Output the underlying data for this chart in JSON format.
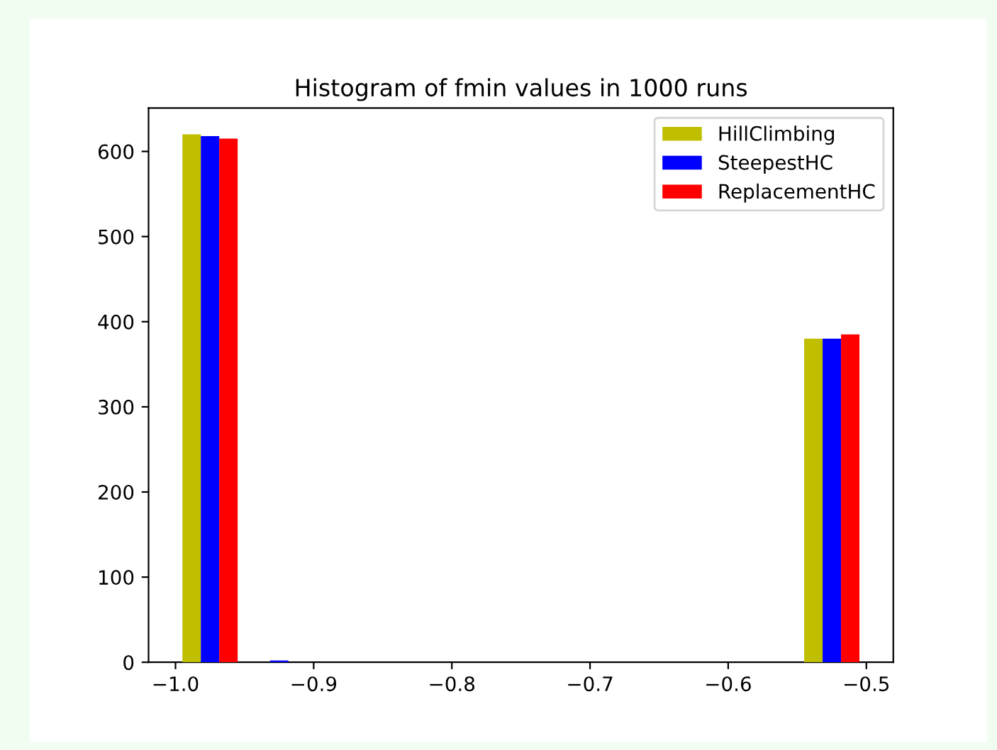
{
  "chart_data": {
    "type": "histogram",
    "title": "Histogram of fmin values in 1000 runs",
    "bins": [
      -1.0,
      -0.95,
      -0.9,
      -0.85,
      -0.8,
      -0.75,
      -0.7,
      -0.65,
      -0.6,
      -0.55,
      -0.5
    ],
    "series": [
      {
        "name": "HillClimbing",
        "color": "#bfbf00",
        "values": [
          620,
          0,
          0,
          0,
          0,
          0,
          0,
          0,
          0,
          380
        ]
      },
      {
        "name": "SteepestHC",
        "color": "#0000ff",
        "values": [
          618,
          2,
          0,
          0,
          0,
          0,
          0,
          0,
          0,
          380
        ]
      },
      {
        "name": "ReplacementHC",
        "color": "#ff0000",
        "values": [
          615,
          0,
          0,
          0,
          0,
          0,
          0,
          0,
          0,
          385
        ]
      }
    ],
    "xlim": [
      -1.0195,
      -0.4805
    ],
    "ylim": [
      0,
      651
    ],
    "xticks": [
      {
        "value": -1.0,
        "label": "−1.0"
      },
      {
        "value": -0.9,
        "label": "−0.9"
      },
      {
        "value": -0.8,
        "label": "−0.8"
      },
      {
        "value": -0.7,
        "label": "−0.7"
      },
      {
        "value": -0.6,
        "label": "−0.6"
      },
      {
        "value": -0.5,
        "label": "−0.5"
      }
    ],
    "yticks": [
      0,
      100,
      200,
      300,
      400,
      500,
      600
    ],
    "legend": "top right",
    "grid": false
  }
}
